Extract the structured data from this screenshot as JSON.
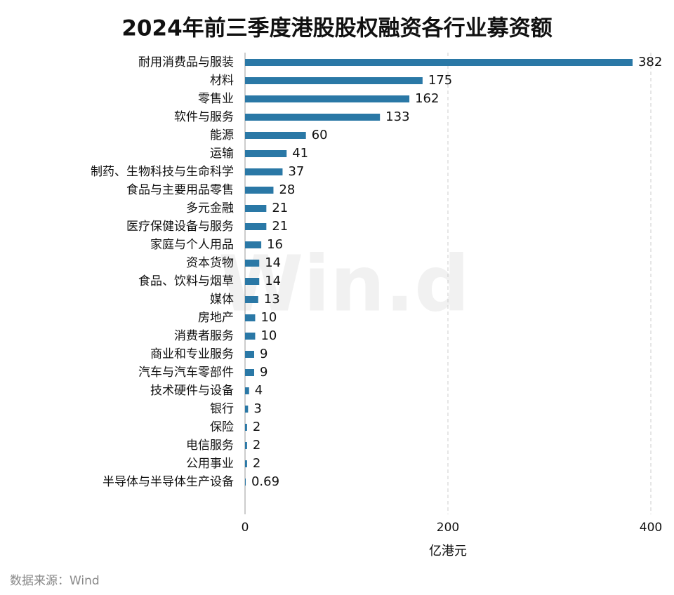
{
  "chart_data": {
    "type": "bar",
    "orientation": "horizontal",
    "title": "2024年前三季度港股股权融资各行业募资额",
    "categories": [
      "耐用消费品与服装",
      "材料",
      "零售业",
      "软件与服务",
      "能源",
      "运输",
      "制药、生物科技与生命科学",
      "食品与主要用品零售",
      "多元金融",
      "医疗保健设备与服务",
      "家庭与个人用品",
      "资本货物",
      "食品、饮料与烟草",
      "媒体",
      "房地产",
      "消费者服务",
      "商业和专业服务",
      "汽车与汽车零部件",
      "技术硬件与设备",
      "银行",
      "保险",
      "电信服务",
      "公用事业",
      "半导体与半导体生产设备"
    ],
    "values": [
      382,
      175,
      162,
      133,
      60,
      41,
      37,
      28,
      21,
      21,
      16,
      14,
      14,
      13,
      10,
      10,
      9,
      9,
      4,
      3,
      2,
      2,
      2,
      0.69
    ],
    "color": "#2a78a6",
    "xlim": [
      0,
      400
    ],
    "xticks": [
      0,
      200,
      400
    ],
    "grid": true,
    "xlabel": "亿港元",
    "watermark": "Win.d",
    "source": "数据来源：Wind"
  }
}
